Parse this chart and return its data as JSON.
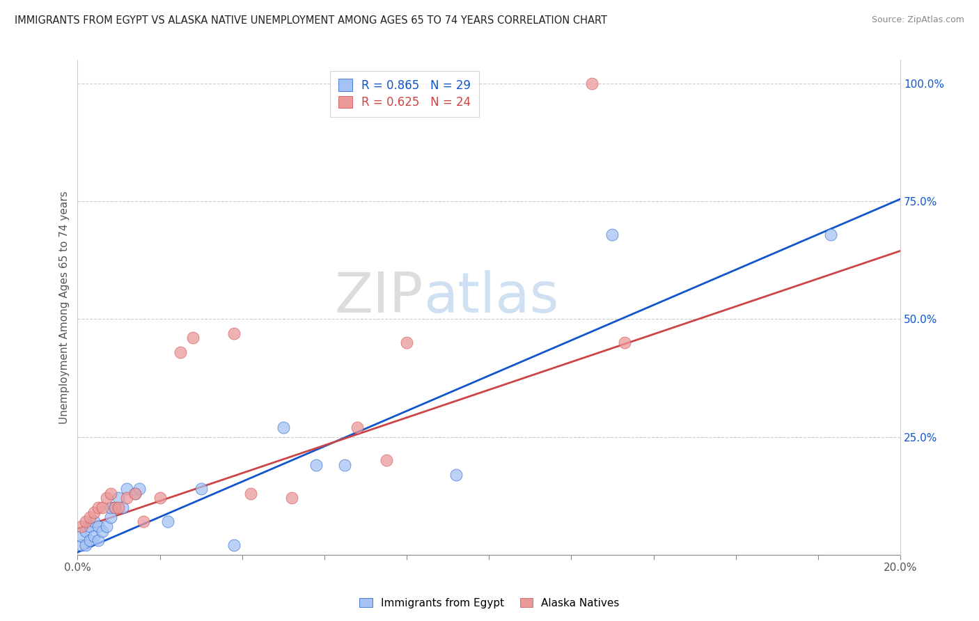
{
  "title": "IMMIGRANTS FROM EGYPT VS ALASKA NATIVE UNEMPLOYMENT AMONG AGES 65 TO 74 YEARS CORRELATION CHART",
  "source": "Source: ZipAtlas.com",
  "ylabel": "Unemployment Among Ages 65 to 74 years",
  "xmin": 0.0,
  "xmax": 0.2,
  "ymin": 0.0,
  "ymax": 1.05,
  "legend1_label": "R = 0.865   N = 29",
  "legend2_label": "R = 0.625   N = 24",
  "series1_color": "#a4c2f4",
  "series2_color": "#ea9999",
  "line1_color": "#1155cc",
  "line2_color": "#cc4444",
  "watermark_zip": "ZIP",
  "watermark_atlas": "atlas",
  "blue_scatter_x": [
    0.001,
    0.001,
    0.002,
    0.002,
    0.003,
    0.003,
    0.004,
    0.004,
    0.005,
    0.005,
    0.006,
    0.007,
    0.008,
    0.008,
    0.009,
    0.01,
    0.011,
    0.012,
    0.014,
    0.015,
    0.022,
    0.03,
    0.038,
    0.05,
    0.058,
    0.065,
    0.092,
    0.13,
    0.183
  ],
  "blue_scatter_y": [
    0.02,
    0.04,
    0.02,
    0.05,
    0.03,
    0.06,
    0.04,
    0.07,
    0.03,
    0.06,
    0.05,
    0.06,
    0.08,
    0.1,
    0.1,
    0.12,
    0.1,
    0.14,
    0.13,
    0.14,
    0.07,
    0.14,
    0.02,
    0.27,
    0.19,
    0.19,
    0.17,
    0.68,
    0.68
  ],
  "pink_scatter_x": [
    0.001,
    0.002,
    0.003,
    0.004,
    0.005,
    0.006,
    0.007,
    0.008,
    0.009,
    0.01,
    0.012,
    0.014,
    0.016,
    0.02,
    0.025,
    0.028,
    0.038,
    0.042,
    0.052,
    0.068,
    0.075,
    0.08,
    0.125,
    0.133
  ],
  "pink_scatter_y": [
    0.06,
    0.07,
    0.08,
    0.09,
    0.1,
    0.1,
    0.12,
    0.13,
    0.1,
    0.1,
    0.12,
    0.13,
    0.07,
    0.12,
    0.43,
    0.46,
    0.47,
    0.13,
    0.12,
    0.27,
    0.2,
    0.45,
    1.0,
    0.45
  ],
  "blue_line_x0": 0.0,
  "blue_line_y0": 0.005,
  "blue_line_x1": 0.2,
  "blue_line_y1": 0.755,
  "pink_line_x0": 0.0,
  "pink_line_y0": 0.055,
  "pink_line_x1": 0.2,
  "pink_line_y1": 0.645
}
